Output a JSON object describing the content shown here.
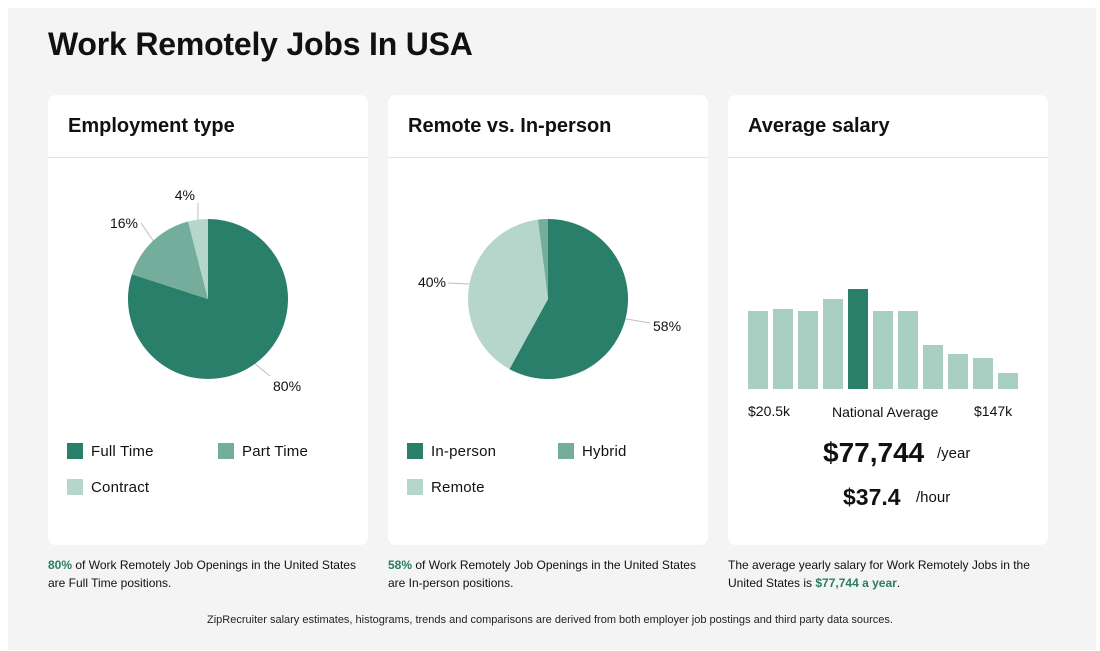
{
  "page": {
    "title": "Work Remotely Jobs In USA"
  },
  "colors": {
    "dark": "#2a7f6a",
    "mid": "#74ad9c",
    "light": "#b6d6cc",
    "bar_light": "#a9cfc2",
    "bar_dark": "#2a7f6a",
    "highlight": "#2a7c66"
  },
  "cards": {
    "employment": {
      "title": "Employment type"
    },
    "remote": {
      "title": "Remote vs. In-person"
    },
    "salary": {
      "title": "Average salary"
    }
  },
  "chart_data": [
    {
      "type": "pie",
      "title": "Employment type",
      "slices": [
        {
          "name": "Full Time",
          "value": 80,
          "label": "80%",
          "color": "#2a7f6a"
        },
        {
          "name": "Part Time",
          "value": 16,
          "label": "16%",
          "color": "#74ad9c"
        },
        {
          "name": "Contract",
          "value": 4,
          "label": "4%",
          "color": "#b6d6cc"
        }
      ]
    },
    {
      "type": "pie",
      "title": "Remote vs. In-person",
      "slices": [
        {
          "name": "In-person",
          "value": 58,
          "label": "58%",
          "color": "#2a7f6a"
        },
        {
          "name": "Remote",
          "value": 40,
          "label": "40%",
          "color": "#b6d6cc"
        },
        {
          "name": "Hybrid",
          "value": 2,
          "label": "",
          "color": "#74ad9c"
        }
      ]
    },
    {
      "type": "bar",
      "title": "Average salary",
      "values": [
        78,
        80,
        78,
        90,
        100,
        78,
        78,
        44,
        35,
        31,
        16
      ],
      "highlight_index": 4,
      "ylim": [
        0,
        100
      ],
      "x_min_label": "$20.5k",
      "x_max_label": "$147k",
      "x_mid_label": "National Average"
    }
  ],
  "legends": {
    "employment": [
      "Full Time",
      "Part Time",
      "Contract"
    ],
    "remote": [
      "In-person",
      "Hybrid",
      "Remote"
    ]
  },
  "salary": {
    "yearly": "$77,744",
    "yearly_unit": "/year",
    "hourly": "$37.4",
    "hourly_unit": "/hour"
  },
  "captions": {
    "employment": {
      "pct": "80%",
      "text": " of Work Remotely Job Openings in the United States are Full Time positions."
    },
    "remote": {
      "pct": "58%",
      "text": " of Work Remotely Job Openings in the United States are In-person positions."
    },
    "salary": {
      "pre": "The average yearly salary for Work Remotely Jobs in the United States is ",
      "hl": "$77,744 a year",
      "post": "."
    }
  },
  "footnote": "ZipRecruiter salary estimates, histograms, trends and comparisons are derived from both employer job postings and third party data sources."
}
